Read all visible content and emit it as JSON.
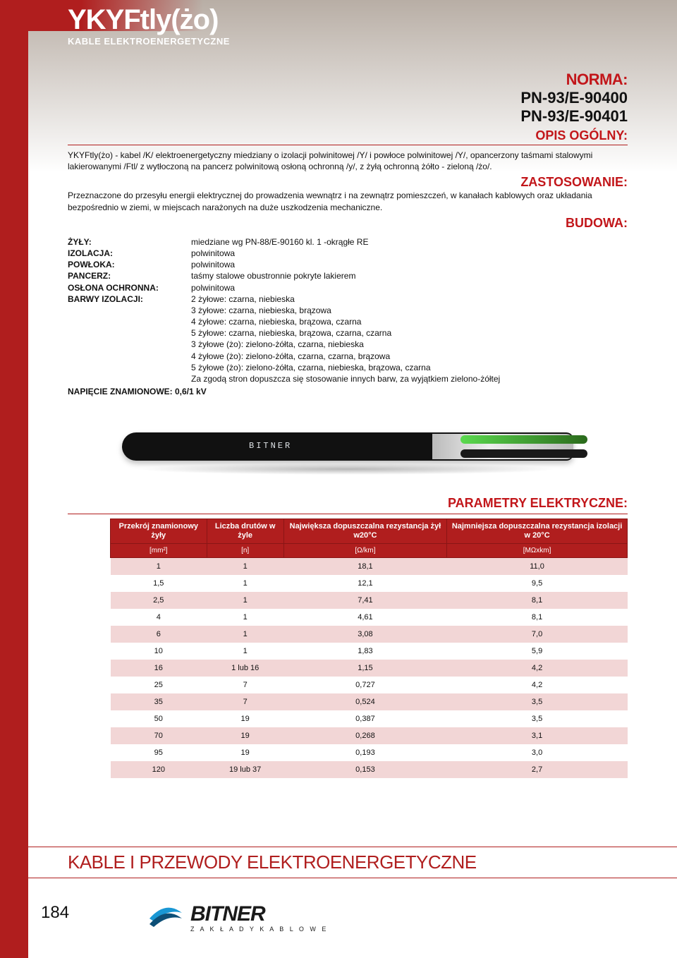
{
  "header": {
    "product_code": "YKYFtly(żo)",
    "subtitle": "KABLE ELEKTROENERGETYCZNE"
  },
  "norma": {
    "label": "NORMA:",
    "codes": [
      "PN-93/E-90400",
      "PN-93/E-90401"
    ]
  },
  "opis": {
    "label": "OPIS OGÓLNY:",
    "text": "YKYFtly(żo) - kabel /K/ elektroenergetyczny miedziany o izolacji polwinitowej /Y/ i powłoce polwinitowej /Y/, opancerzony taśmami stalowymi lakierowanymi /Ftl/ z wytłoczoną na pancerz polwinitową osłoną ochronną /y/, z żyłą ochronną żółto - zieloną /żo/."
  },
  "zastosowanie": {
    "label": "ZASTOSOWANIE:",
    "text": "Przeznaczone do przesyłu energii elektrycznej do prowadzenia wewnątrz i na zewnątrz pomieszczeń, w kanałach kablowych oraz układania bezpośrednio w ziemi, w miejscach narażonych na duże uszkodzenia mechaniczne."
  },
  "budowa": {
    "label": "BUDOWA:",
    "rows": [
      {
        "label": "ŻYŁY:",
        "value": "miedziane wg PN-88/E-90160 kl. 1 -okrągłe RE"
      },
      {
        "label": "IZOLACJA:",
        "value": "polwinitowa"
      },
      {
        "label": "POWŁOKA:",
        "value": "polwinitowa"
      },
      {
        "label": "PANCERZ:",
        "value": "taśmy stalowe obustronnie pokryte lakierem"
      },
      {
        "label": "OSŁONA OCHRONNA:",
        "value": "polwinitowa"
      },
      {
        "label": "BARWY IZOLACJI:",
        "value": "2 żyłowe: czarna, niebieska"
      }
    ],
    "barwy_extra": [
      "3 żyłowe: czarna, niebieska, brązowa",
      "4 żyłowe: czarna, niebieska, brązowa, czarna",
      "5 żyłowe: czarna, niebieska, brązowa, czarna, czarna",
      "3 żyłowe (żo): zielono-żółta, czarna, niebieska",
      "4 żyłowe (żo): zielono-żółta, czarna, czarna, brązowa",
      "5 żyłowe (żo): zielono-żółta, czarna, niebieska, brązowa, czarna",
      "Za zgodą stron dopuszcza się stosowanie innych barw, za wyjątkiem zielono-żółtej"
    ],
    "napiecie": "NAPIĘCIE ZNAMIONOWE: 0,6/1 kV"
  },
  "cable_label": "BITNER",
  "params": {
    "title": "PARAMETRY ELEKTRYCZNE:",
    "headers": [
      "Przekrój znamionowy\nżyły",
      "Liczba drutów\nw żyle",
      "Największa dopuszczalna rezystancja żył w20°C",
      "Najmniejsza dopuszczalna rezystancja izolacji w 20°C"
    ],
    "units": [
      "[mm²]",
      "[n]",
      "[Ω/km]",
      "[MΩxkm]"
    ],
    "rows": [
      [
        "1",
        "1",
        "18,1",
        "11,0"
      ],
      [
        "1,5",
        "1",
        "12,1",
        "9,5"
      ],
      [
        "2,5",
        "1",
        "7,41",
        "8,1"
      ],
      [
        "4",
        "1",
        "4,61",
        "8,1"
      ],
      [
        "6",
        "1",
        "3,08",
        "7,0"
      ],
      [
        "10",
        "1",
        "1,83",
        "5,9"
      ],
      [
        "16",
        "1 lub 16",
        "1,15",
        "4,2"
      ],
      [
        "25",
        "7",
        "0,727",
        "4,2"
      ],
      [
        "35",
        "7",
        "0,524",
        "3,5"
      ],
      [
        "50",
        "19",
        "0,387",
        "3,5"
      ],
      [
        "70",
        "19",
        "0,268",
        "3,1"
      ],
      [
        "95",
        "19",
        "0,193",
        "3,0"
      ],
      [
        "120",
        "19 lub 37",
        "0,153",
        "2,7"
      ]
    ]
  },
  "footer": {
    "title": "KABLE I PRZEWODY ELEKTROENERGETYCZNE",
    "page_number": "184",
    "logo_name": "BITNER",
    "logo_sub": "Z A K Ł A D Y   K A B L O W E"
  },
  "colors": {
    "brand_red": "#b01e1e",
    "accent_red": "#c2161a",
    "row_alt": "#f2d6d6",
    "text": "#111111"
  }
}
